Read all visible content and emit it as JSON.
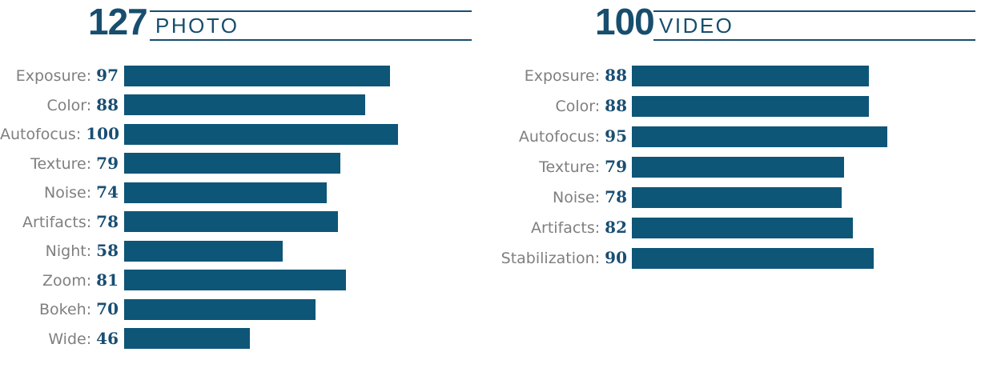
{
  "colors": {
    "bar": "#0e5677",
    "heading": "#174e6e",
    "value": "#1a4e73",
    "label": "#7f7f7f",
    "background": "#ffffff"
  },
  "chart_data": [
    {
      "type": "bar",
      "orientation": "horizontal",
      "score": "127",
      "title": "PHOTO",
      "xlim": [
        0,
        100
      ],
      "grid": false,
      "legend": false,
      "categories": [
        "Exposure",
        "Color",
        "Autofocus",
        "Texture",
        "Noise",
        "Artifacts",
        "Night",
        "Zoom",
        "Bokeh",
        "Wide"
      ],
      "values": [
        97,
        88,
        100,
        79,
        74,
        78,
        58,
        81,
        70,
        46
      ]
    },
    {
      "type": "bar",
      "orientation": "horizontal",
      "score": "100",
      "title": "VIDEO",
      "xlim": [
        0,
        100
      ],
      "grid": false,
      "legend": false,
      "categories": [
        "Exposure",
        "Color",
        "Autofocus",
        "Texture",
        "Noise",
        "Artifacts",
        "Stabilization"
      ],
      "values": [
        88,
        88,
        95,
        79,
        78,
        82,
        90
      ]
    }
  ]
}
